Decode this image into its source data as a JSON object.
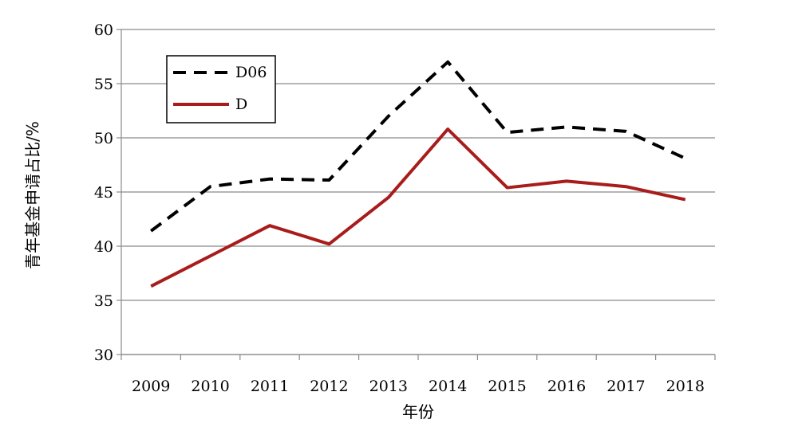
{
  "chart_data": {
    "type": "line",
    "title": "",
    "xlabel": "年份",
    "ylabel": "青年基金申请占比/%",
    "categories": [
      "2009",
      "2010",
      "2011",
      "2012",
      "2013",
      "2014",
      "2015",
      "2016",
      "2017",
      "2018"
    ],
    "ylim": [
      30,
      60
    ],
    "yticks": [
      30,
      35,
      40,
      45,
      50,
      55,
      60
    ],
    "grid": "horizontal",
    "legend": "top-left",
    "series": [
      {
        "name": "D06",
        "style": "dashed",
        "color": "#000000",
        "values": [
          41.4,
          45.5,
          46.2,
          46.1,
          52.0,
          57.0,
          50.5,
          51.0,
          50.6,
          48.1
        ]
      },
      {
        "name": "D",
        "style": "solid",
        "color": "#a81c1c",
        "values": [
          36.3,
          39.1,
          41.9,
          40.2,
          44.5,
          50.8,
          45.4,
          46.0,
          45.5,
          44.3
        ]
      }
    ]
  }
}
